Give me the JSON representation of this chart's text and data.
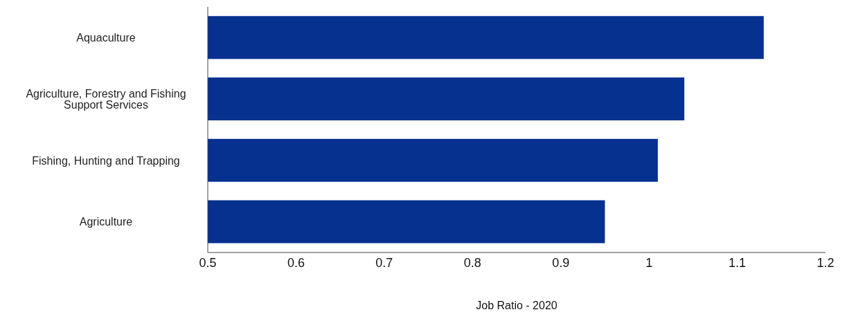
{
  "chart_data": {
    "type": "bar",
    "orientation": "horizontal",
    "xlabel": "Job Ratio - 2020",
    "categories": [
      "Aquaculture",
      "Agriculture, Forestry and Fishing Support Services",
      "Fishing, Hunting and Trapping",
      "Agriculture"
    ],
    "values": [
      1.13,
      1.04,
      1.01,
      0.95
    ],
    "color": "#06318f",
    "xlim": [
      0.5,
      1.2
    ],
    "xticks": [
      0.5,
      0.6,
      0.7,
      0.8,
      0.9,
      1,
      1.1,
      1.2
    ],
    "grid": false,
    "legend": false
  }
}
